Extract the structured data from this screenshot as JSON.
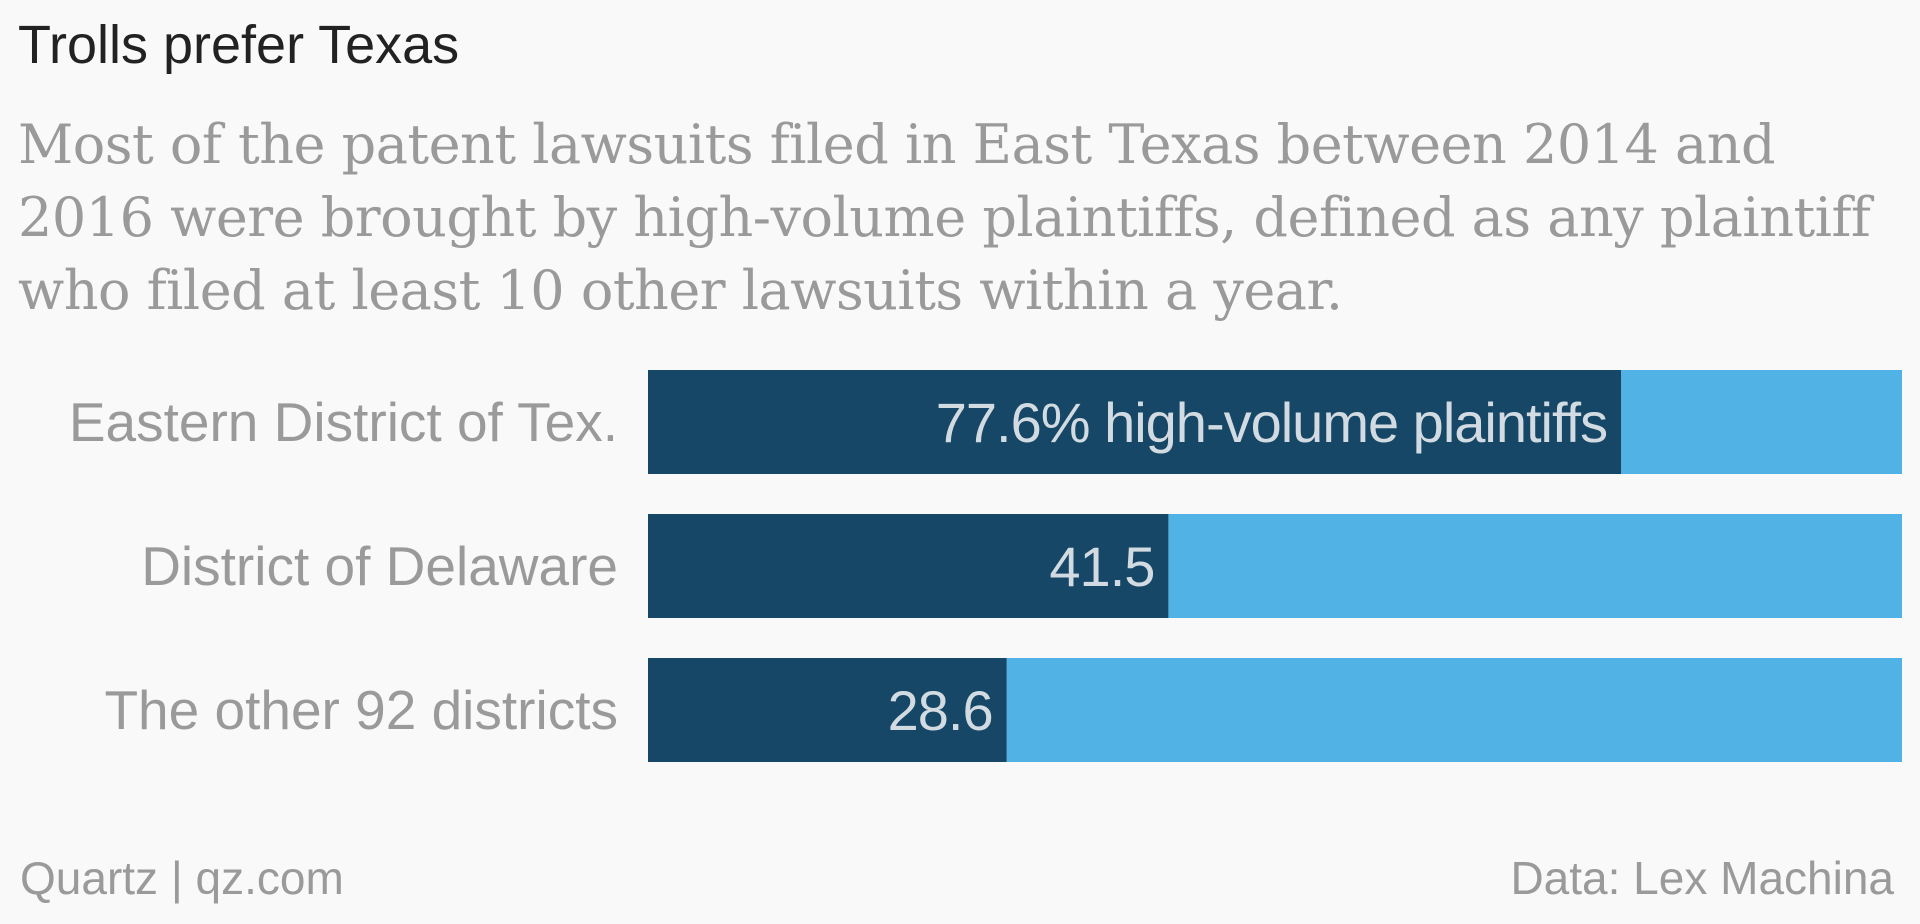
{
  "title": "Trolls prefer Texas",
  "subtitle": "Most of the patent lawsuits filed in East Texas between 2014 and 2016 were brought by high-volume plaintiffs, defined as any plaintiff who filed at least 10 other lawsuits within a year.",
  "footer": {
    "left": "Quartz | qz.com",
    "right": "Data: Lex Machina"
  },
  "colors": {
    "high_volume": "#164766",
    "remainder": "#51b2e5",
    "bar_label": "#d2dbe1",
    "category_label": "#9a9a9a"
  },
  "chart_data": {
    "type": "bar",
    "orientation": "horizontal",
    "stacked": true,
    "categories": [
      "Eastern District of Tex.",
      "District of Delaware",
      "The other 92 districts"
    ],
    "series": [
      {
        "name": "high-volume plaintiffs",
        "values": [
          77.6,
          41.5,
          28.6
        ],
        "labels": [
          "77.6% high-volume plaintiffs",
          "41.5",
          "28.6"
        ]
      },
      {
        "values": [
          22.4,
          58.5,
          71.4
        ]
      }
    ],
    "xlim": [
      0,
      100
    ],
    "grid": false,
    "legend": "none"
  }
}
